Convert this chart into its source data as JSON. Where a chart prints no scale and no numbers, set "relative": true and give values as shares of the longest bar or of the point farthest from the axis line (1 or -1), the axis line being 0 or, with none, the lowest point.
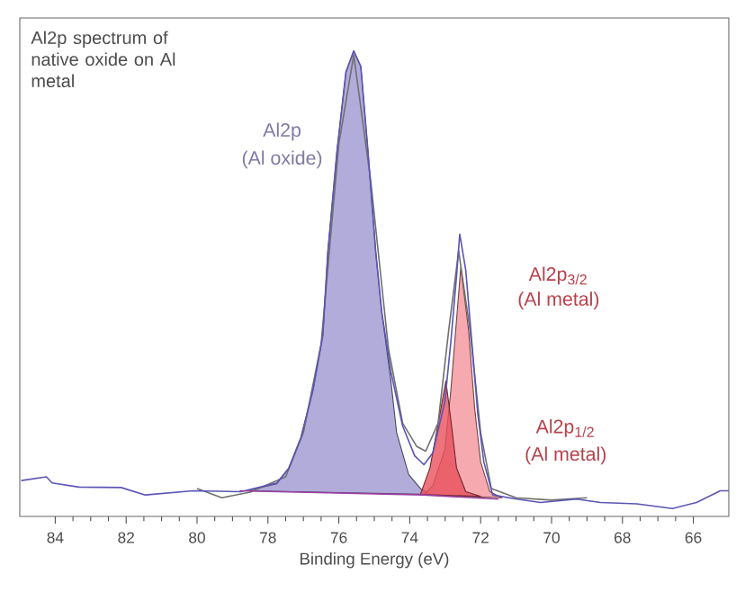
{
  "chart_data": {
    "type": "line",
    "relative": true,
    "title": "Al2p spectrum of native oxide on Al metal",
    "xlabel": "Binding Energy (eV)",
    "xlim": [
      85,
      65
    ],
    "xticks": [
      84,
      82,
      80,
      78,
      76,
      74,
      72,
      70,
      68,
      66
    ],
    "series": [
      {
        "type": "area",
        "color": "#9d97cf",
        "x": [
          78.6,
          77.75,
          77.41,
          77.07,
          76.73,
          76.45,
          76.31,
          76.05,
          75.8,
          75.58,
          75.38,
          75.18,
          74.96,
          74.79,
          74.53,
          74.37,
          74.03,
          73.69,
          73.4
        ],
        "values": [
          0.055,
          0.07,
          0.104,
          0.169,
          0.271,
          0.39,
          0.568,
          0.786,
          0.954,
          1.0,
          0.966,
          0.786,
          0.568,
          0.439,
          0.29,
          0.18,
          0.09,
          0.059,
          0.047
        ]
      },
      {
        "type": "area",
        "color": "#f4939a",
        "x": [
          73.6,
          73.35,
          73.01,
          72.84,
          72.56,
          72.34,
          72.17,
          72.0,
          71.74,
          71.4
        ],
        "values": [
          0.046,
          0.066,
          0.143,
          0.271,
          0.535,
          0.4,
          0.233,
          0.117,
          0.053,
          0.04
        ]
      },
      {
        "type": "area",
        "color": "#e8505c",
        "x": [
          73.7,
          73.43,
          73.18,
          72.98,
          72.84,
          72.68,
          72.42,
          72.0
        ],
        "values": [
          0.047,
          0.104,
          0.207,
          0.291,
          0.207,
          0.104,
          0.053,
          0.043
        ]
      },
      {
        "color": "#707070",
        "x": [
          80.0,
          79.3,
          78.5,
          77.5,
          77.0,
          76.5,
          76.0,
          75.58,
          75.1,
          74.6,
          74.2,
          73.8,
          73.55,
          73.2,
          72.9,
          72.62,
          72.3,
          72.0,
          71.7,
          71.0,
          70.0,
          69.0
        ],
        "values": [
          0.06,
          0.04,
          0.052,
          0.085,
          0.18,
          0.37,
          0.8,
          0.99,
          0.72,
          0.36,
          0.2,
          0.15,
          0.14,
          0.2,
          0.4,
          0.57,
          0.4,
          0.18,
          0.06,
          0.04,
          0.035,
          0.04
        ]
      },
      {
        "color": "#5b55b5",
        "x": [
          84.96,
          84.25,
          84.09,
          83.33,
          82.14,
          81.46,
          80.11,
          78.76,
          77.75,
          77.41,
          77.07,
          76.73,
          76.45,
          76.31,
          76.05,
          75.8,
          75.58,
          75.38,
          75.18,
          74.96,
          74.79,
          74.53,
          74.2,
          73.86,
          73.6,
          73.35,
          73.01,
          72.84,
          72.68,
          72.59,
          72.42,
          72.25,
          72.08,
          71.91,
          71.66,
          70.98,
          70.31,
          69.29,
          68.62,
          67.6,
          66.59,
          65.91,
          65.24,
          65.0
        ],
        "values": [
          0.077,
          0.085,
          0.072,
          0.063,
          0.062,
          0.046,
          0.055,
          0.053,
          0.072,
          0.104,
          0.169,
          0.271,
          0.39,
          0.568,
          0.786,
          0.954,
          0.999,
          0.966,
          0.786,
          0.568,
          0.439,
          0.31,
          0.194,
          0.13,
          0.111,
          0.136,
          0.246,
          0.375,
          0.516,
          0.606,
          0.529,
          0.375,
          0.22,
          0.117,
          0.046,
          0.037,
          0.03,
          0.037,
          0.03,
          0.027,
          0.017,
          0.03,
          0.055,
          0.055
        ]
      },
      {
        "color": "#9b3fa0",
        "x": [
          78.8,
          73.6,
          71.5
        ],
        "values": [
          0.055,
          0.046,
          0.037
        ]
      }
    ],
    "annotations": [
      "Al2p",
      "(Al oxide)",
      "Al2p$_{3/2}$",
      "(Al metal)",
      "Al2p$_{1/2}$",
      "(Al metal)"
    ]
  }
}
